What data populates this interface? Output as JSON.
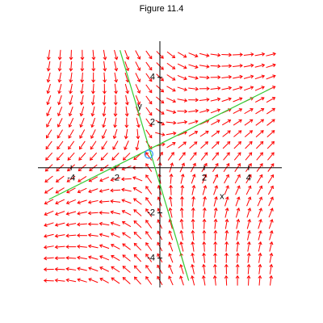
{
  "chart_data": {
    "type": "direction-field",
    "title": "Figure 11.4",
    "xlabel": "x",
    "ylabel": "y",
    "xlim": [
      -5.5,
      5.5
    ],
    "ylim": [
      -5.3,
      5.6
    ],
    "xticks": [
      -4,
      -2,
      2,
      4
    ],
    "yticks": [
      -4,
      -2,
      2,
      4
    ],
    "system": [
      [
        0.74,
        0.53
      ],
      [
        0.87,
        -0.74
      ]
    ],
    "equilibrium": [
      -0.5,
      0.6
    ],
    "equilibrium_color": "#3399ff",
    "field_range": [
      -5,
      5
    ],
    "field_step": 0.5,
    "arrow_color": "#ff0000",
    "curves": [
      {
        "color": "#33cc33",
        "x": [
          -5,
          5
        ],
        "y": [
          -1.4,
          3.5
        ]
      },
      {
        "color": "#33cc33",
        "x": [
          -1.8,
          1.3
        ],
        "y": [
          5.2,
          -5
        ]
      }
    ]
  }
}
